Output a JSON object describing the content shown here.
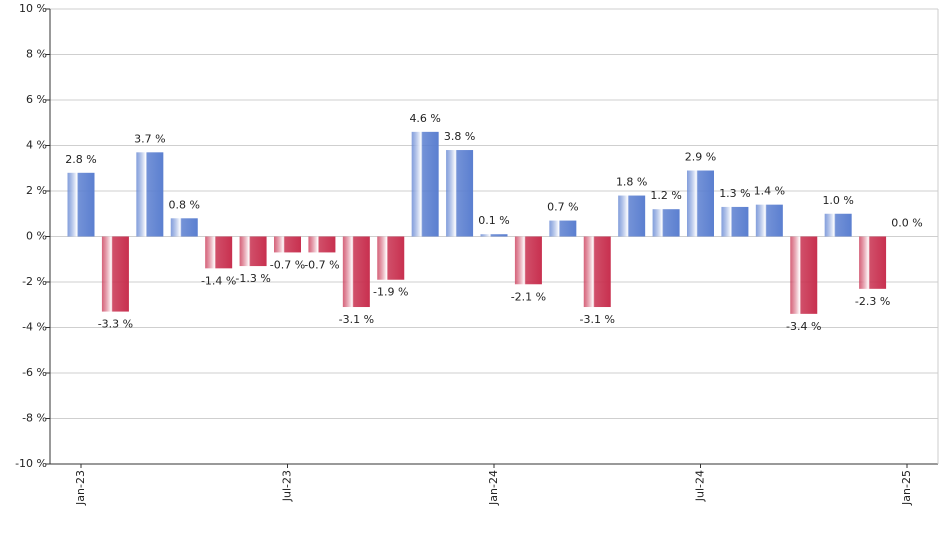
{
  "chart_data": {
    "type": "bar",
    "categories": [
      "Jan-23",
      null,
      null,
      null,
      null,
      null,
      "Jul-23",
      null,
      null,
      null,
      null,
      null,
      "Jan-24",
      null,
      null,
      null,
      null,
      null,
      "Jul-24",
      null,
      null,
      null,
      null,
      null,
      "Jan-25"
    ],
    "values": [
      2.8,
      -3.3,
      3.7,
      0.8,
      -1.4,
      -1.3,
      -0.7,
      -0.7,
      -3.1,
      -1.9,
      4.6,
      3.8,
      0.1,
      -2.1,
      0.7,
      -3.1,
      1.8,
      1.2,
      2.9,
      1.3,
      1.4,
      -3.4,
      1.0,
      -2.3,
      0.0
    ],
    "value_labels": [
      "2.8 %",
      "-3.3 %",
      "3.7 %",
      "0.8 %",
      "-1.4 %",
      "-1.3 %",
      "-0.7 %",
      "-0.7 %",
      "-3.1 %",
      "-1.9 %",
      "4.6 %",
      "3.8 %",
      "0.1 %",
      "-2.1 %",
      "0.7 %",
      "-3.1 %",
      "1.8 %",
      "1.2 %",
      "2.9 %",
      "1.3 %",
      "1.4 %",
      "-3.4 %",
      "1.0 %",
      "-2.3 %",
      "0.0 %"
    ],
    "positive_color": "#5b7fd0",
    "negative_color": "#c8304f",
    "ylim": [
      -10,
      10
    ],
    "yticks": [
      {
        "value": -10,
        "label": "-10 %"
      },
      {
        "value": -8,
        "label": "-8 %"
      },
      {
        "value": -6,
        "label": "-6 %"
      },
      {
        "value": -4,
        "label": "-4 %"
      },
      {
        "value": -2,
        "label": "-2 %"
      },
      {
        "value": 0,
        "label": "0 %"
      },
      {
        "value": 2,
        "label": "2 %"
      },
      {
        "value": 4,
        "label": "4 %"
      },
      {
        "value": 6,
        "label": "6 %"
      },
      {
        "value": 8,
        "label": "8 %"
      },
      {
        "value": 10,
        "label": "10 %"
      }
    ],
    "grid": true
  }
}
